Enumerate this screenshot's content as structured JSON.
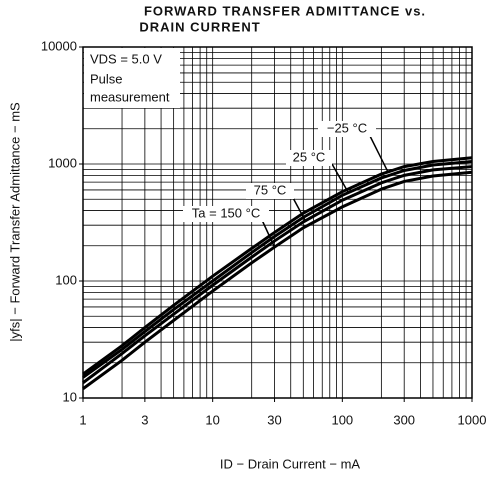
{
  "chart_data": {
    "type": "line",
    "title": "FORWARD TRANSFER ADMITTANCE vs.",
    "subtitle": "DRAIN CURRENT",
    "x_label": "ID − Drain Current − mA",
    "y_label": "|yfs| − Forward Transfer Admittance − mS",
    "annotations": [
      "VDS = 5.0 V",
      "Pulse",
      "measurement"
    ],
    "x": [
      1,
      2,
      3,
      5,
      10,
      20,
      30,
      50,
      100,
      200,
      300,
      500,
      1000
    ],
    "series": [
      {
        "name": "−25 °C",
        "color": "#000000",
        "values": [
          16,
          28,
          40,
          62,
          110,
          190,
          260,
          380,
          580,
          820,
          950,
          1050,
          1130
        ]
      },
      {
        "name": "25 °C",
        "color": "#000000",
        "values": [
          15,
          26,
          37,
          57,
          100,
          175,
          240,
          350,
          540,
          760,
          880,
          980,
          1050
        ]
      },
      {
        "name": "75 °C",
        "color": "#000000",
        "values": [
          13.5,
          24,
          34,
          52,
          92,
          160,
          220,
          320,
          490,
          690,
          800,
          890,
          950
        ]
      },
      {
        "name": "Ta = 150 °C",
        "color": "#000000",
        "values": [
          12,
          21,
          30,
          46,
          82,
          143,
          195,
          285,
          430,
          610,
          710,
          790,
          850
        ]
      }
    ],
    "xlim": [
      1,
      1000
    ],
    "ylim": [
      10,
      10000
    ],
    "xlog": true,
    "ylog": true,
    "xticks": [
      1,
      3,
      10,
      30,
      100,
      300,
      1000
    ],
    "yticks": [
      10,
      100,
      1000,
      10000
    ],
    "xgrid": [
      2,
      3,
      4,
      5,
      6,
      7,
      8,
      9,
      10,
      20,
      30,
      40,
      50,
      60,
      70,
      80,
      90,
      100,
      200,
      300,
      400,
      500,
      600,
      700,
      800,
      900
    ],
    "ygrid": [
      20,
      30,
      40,
      50,
      60,
      70,
      80,
      90,
      100,
      200,
      300,
      400,
      500,
      600,
      700,
      800,
      900,
      1000,
      2000,
      3000,
      4000,
      5000,
      6000,
      7000,
      8000,
      9000
    ]
  }
}
